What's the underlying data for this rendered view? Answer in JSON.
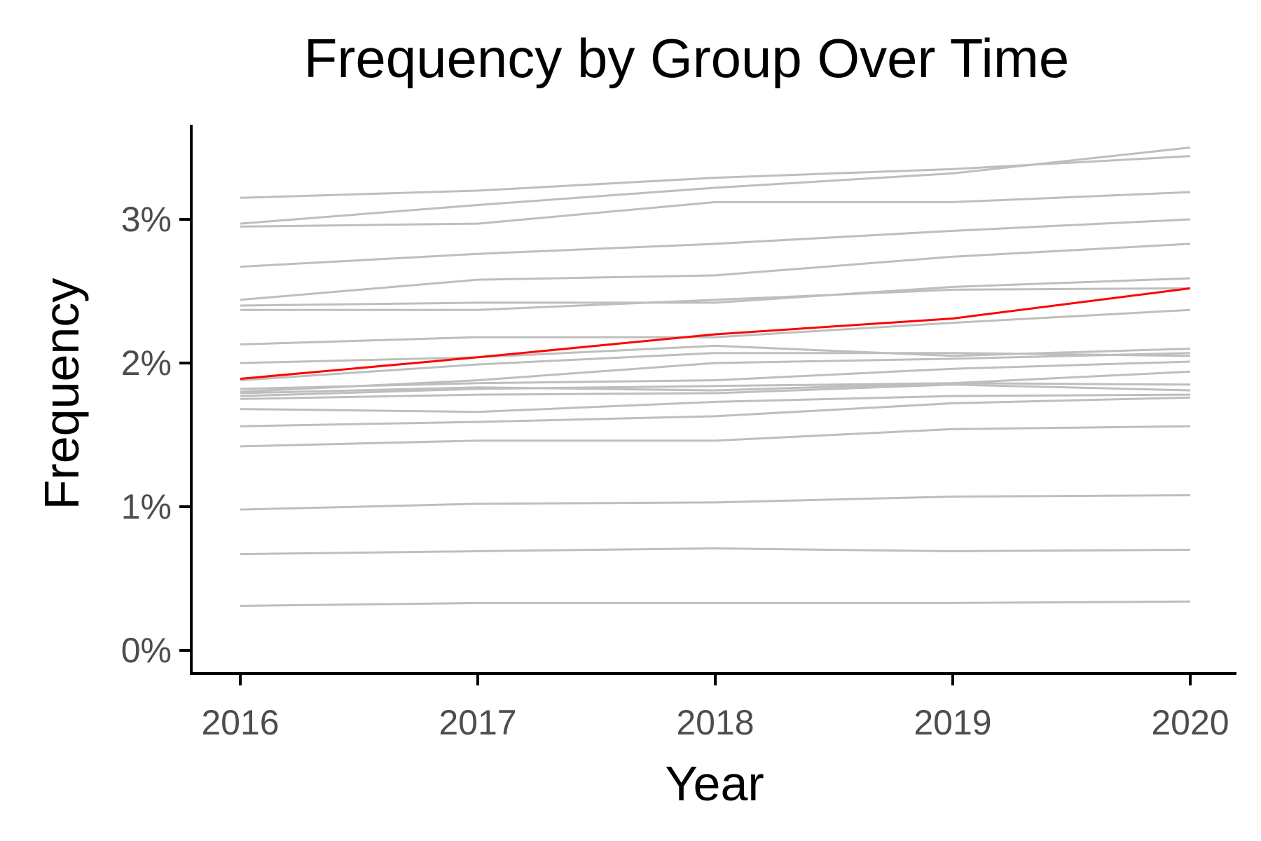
{
  "chart_data": {
    "type": "line",
    "title": "Frequency by Group Over Time",
    "xlabel": "Year",
    "ylabel": "Frequency",
    "x": [
      2016,
      2017,
      2018,
      2019,
      2020
    ],
    "x_tick_labels": [
      "2016",
      "2017",
      "2018",
      "2019",
      "2020"
    ],
    "ylim": [
      0,
      0.037
    ],
    "y_ticks": [
      0,
      0.01,
      0.02,
      0.03
    ],
    "y_tick_labels": [
      "0%",
      "1%",
      "2%",
      "3%"
    ],
    "grid": false,
    "legend": "none",
    "colors": {
      "background_series": "#bebebe",
      "highlight_series": "#ff0000",
      "axis": "#000000",
      "tick_label": "#4d4d4d"
    },
    "series": [
      {
        "values": [
          0.0315,
          0.032,
          0.0329,
          0.0335,
          0.0344
        ],
        "highlight": false
      },
      {
        "values": [
          0.0297,
          0.031,
          0.0322,
          0.0332,
          0.035
        ],
        "highlight": false
      },
      {
        "values": [
          0.0295,
          0.0297,
          0.0312,
          0.0312,
          0.0319
        ],
        "highlight": false
      },
      {
        "values": [
          0.0267,
          0.0276,
          0.0283,
          0.0292,
          0.03
        ],
        "highlight": false
      },
      {
        "values": [
          0.0244,
          0.0258,
          0.0261,
          0.0274,
          0.0283
        ],
        "highlight": false
      },
      {
        "values": [
          0.024,
          0.0242,
          0.0242,
          0.0253,
          0.0259
        ],
        "highlight": false
      },
      {
        "values": [
          0.0237,
          0.0237,
          0.0244,
          0.0251,
          0.0252
        ],
        "highlight": false
      },
      {
        "values": [
          0.0213,
          0.0218,
          0.0218,
          0.0228,
          0.0237
        ],
        "highlight": false
      },
      {
        "values": [
          0.02,
          0.0204,
          0.0212,
          0.0205,
          0.021
        ],
        "highlight": false
      },
      {
        "values": [
          0.0188,
          0.0199,
          0.0207,
          0.0207,
          0.0205
        ],
        "highlight": false
      },
      {
        "values": [
          0.018,
          0.0188,
          0.02,
          0.0203,
          0.0207
        ],
        "highlight": false
      },
      {
        "values": [
          0.0182,
          0.0186,
          0.0188,
          0.0196,
          0.0201
        ],
        "highlight": false
      },
      {
        "values": [
          0.0179,
          0.0183,
          0.0181,
          0.0186,
          0.0194
        ],
        "highlight": false
      },
      {
        "values": [
          0.0177,
          0.0182,
          0.0184,
          0.0186,
          0.0185
        ],
        "highlight": false
      },
      {
        "values": [
          0.0175,
          0.0178,
          0.0179,
          0.0185,
          0.0181
        ],
        "highlight": false
      },
      {
        "values": [
          0.0168,
          0.0166,
          0.0173,
          0.0177,
          0.0178
        ],
        "highlight": false
      },
      {
        "values": [
          0.0156,
          0.0159,
          0.0163,
          0.0172,
          0.0176
        ],
        "highlight": false
      },
      {
        "values": [
          0.0142,
          0.0146,
          0.0146,
          0.0154,
          0.0156
        ],
        "highlight": false
      },
      {
        "values": [
          0.0098,
          0.0102,
          0.0103,
          0.0107,
          0.0108
        ],
        "highlight": false
      },
      {
        "values": [
          0.0067,
          0.0069,
          0.0071,
          0.0069,
          0.007
        ],
        "highlight": false
      },
      {
        "values": [
          0.0031,
          0.0033,
          0.0033,
          0.0033,
          0.0034
        ],
        "highlight": false
      },
      {
        "values": [
          0.0189,
          0.0204,
          0.022,
          0.0231,
          0.0252
        ],
        "highlight": true
      }
    ]
  }
}
